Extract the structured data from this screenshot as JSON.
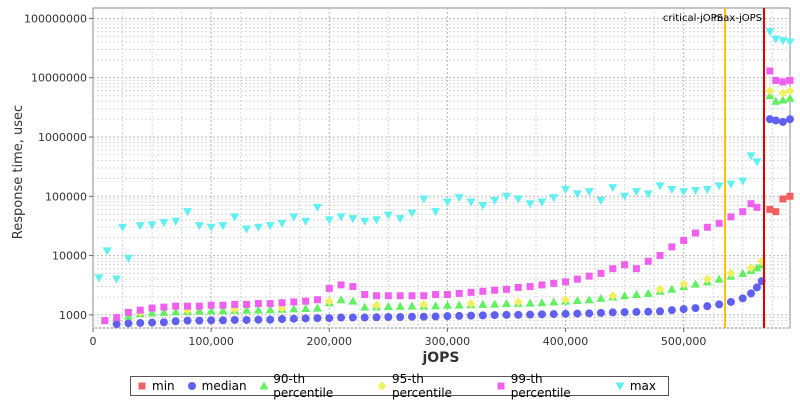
{
  "chart_data": {
    "type": "scatter",
    "xlabel": "jOPS",
    "ylabel": "Response time, usec",
    "y_scale": "log",
    "xlim": [
      0,
      590000
    ],
    "ylim": [
      600,
      150000000
    ],
    "x_ticks": [
      0,
      100000,
      200000,
      300000,
      400000,
      500000
    ],
    "x_tick_labels": [
      "0",
      "100,000",
      "200,000",
      "300,000",
      "400,000",
      "500,000"
    ],
    "y_ticks": [
      1000,
      10000,
      100000,
      1000000,
      10000000,
      100000000
    ],
    "y_tick_labels": [
      "1000",
      "10000",
      "100000",
      "1000000",
      "10000000",
      "100000000"
    ],
    "grid": true,
    "legend_position": "bottom",
    "reference_lines": [
      {
        "label": "critical-jOPS",
        "x": 535000,
        "color": "#ffc000"
      },
      {
        "label": "max-jOPS",
        "x": 568000,
        "color": "#e00000"
      }
    ],
    "series": [
      {
        "name": "min",
        "color": "#f06060",
        "marker": "square",
        "points": [
          [
            573000,
            60000
          ],
          [
            578000,
            55000
          ],
          [
            584000,
            90000
          ],
          [
            590000,
            100000
          ]
        ]
      },
      {
        "name": "median",
        "color": "#6060f0",
        "marker": "circle",
        "points": [
          [
            20000,
            700
          ],
          [
            30000,
            720
          ],
          [
            40000,
            730
          ],
          [
            50000,
            740
          ],
          [
            60000,
            750
          ],
          [
            70000,
            780
          ],
          [
            80000,
            800
          ],
          [
            90000,
            800
          ],
          [
            100000,
            810
          ],
          [
            110000,
            810
          ],
          [
            120000,
            820
          ],
          [
            130000,
            820
          ],
          [
            140000,
            830
          ],
          [
            150000,
            830
          ],
          [
            160000,
            850
          ],
          [
            170000,
            860
          ],
          [
            180000,
            870
          ],
          [
            190000,
            880
          ],
          [
            200000,
            880
          ],
          [
            210000,
            900
          ],
          [
            220000,
            900
          ],
          [
            230000,
            900
          ],
          [
            240000,
            910
          ],
          [
            250000,
            920
          ],
          [
            260000,
            920
          ],
          [
            270000,
            930
          ],
          [
            280000,
            930
          ],
          [
            290000,
            940
          ],
          [
            300000,
            950
          ],
          [
            310000,
            960
          ],
          [
            320000,
            970
          ],
          [
            330000,
            980
          ],
          [
            340000,
            990
          ],
          [
            350000,
            1000
          ],
          [
            360000,
            1000
          ],
          [
            370000,
            1010
          ],
          [
            380000,
            1020
          ],
          [
            390000,
            1030
          ],
          [
            400000,
            1040
          ],
          [
            410000,
            1050
          ],
          [
            420000,
            1060
          ],
          [
            430000,
            1080
          ],
          [
            440000,
            1100
          ],
          [
            450000,
            1110
          ],
          [
            460000,
            1120
          ],
          [
            470000,
            1130
          ],
          [
            480000,
            1150
          ],
          [
            490000,
            1200
          ],
          [
            500000,
            1250
          ],
          [
            510000,
            1300
          ],
          [
            520000,
            1400
          ],
          [
            530000,
            1500
          ],
          [
            540000,
            1650
          ],
          [
            550000,
            1900
          ],
          [
            557000,
            2300
          ],
          [
            562000,
            2900
          ],
          [
            566000,
            3700
          ],
          [
            573000,
            2000000
          ],
          [
            578000,
            1900000
          ],
          [
            584000,
            1800000
          ],
          [
            590000,
            2000000
          ]
        ]
      },
      {
        "name": "90-th percentile",
        "color": "#60f060",
        "marker": "triangle",
        "points": [
          [
            20000,
            900
          ],
          [
            30000,
            950
          ],
          [
            40000,
            1050
          ],
          [
            50000,
            1080
          ],
          [
            60000,
            1100
          ],
          [
            70000,
            1120
          ],
          [
            80000,
            1150
          ],
          [
            90000,
            1160
          ],
          [
            100000,
            1170
          ],
          [
            110000,
            1180
          ],
          [
            120000,
            1190
          ],
          [
            130000,
            1200
          ],
          [
            140000,
            1210
          ],
          [
            150000,
            1220
          ],
          [
            160000,
            1240
          ],
          [
            170000,
            1260
          ],
          [
            180000,
            1280
          ],
          [
            190000,
            1300
          ],
          [
            200000,
            1600
          ],
          [
            210000,
            1800
          ],
          [
            220000,
            1700
          ],
          [
            230000,
            1350
          ],
          [
            240000,
            1360
          ],
          [
            250000,
            1380
          ],
          [
            260000,
            1390
          ],
          [
            270000,
            1400
          ],
          [
            280000,
            1400
          ],
          [
            290000,
            1420
          ],
          [
            300000,
            1450
          ],
          [
            310000,
            1460
          ],
          [
            320000,
            1480
          ],
          [
            330000,
            1500
          ],
          [
            340000,
            1520
          ],
          [
            350000,
            1550
          ],
          [
            360000,
            1560
          ],
          [
            370000,
            1580
          ],
          [
            380000,
            1600
          ],
          [
            390000,
            1650
          ],
          [
            400000,
            1700
          ],
          [
            410000,
            1750
          ],
          [
            420000,
            1800
          ],
          [
            430000,
            1900
          ],
          [
            440000,
            2000
          ],
          [
            450000,
            2100
          ],
          [
            460000,
            2200
          ],
          [
            470000,
            2300
          ],
          [
            480000,
            2500
          ],
          [
            490000,
            2700
          ],
          [
            500000,
            3000
          ],
          [
            510000,
            3300
          ],
          [
            520000,
            3600
          ],
          [
            530000,
            4000
          ],
          [
            540000,
            4500
          ],
          [
            550000,
            5000
          ],
          [
            557000,
            5600
          ],
          [
            562000,
            6200
          ],
          [
            566000,
            7000
          ],
          [
            573000,
            5000000
          ],
          [
            578000,
            4000000
          ],
          [
            584000,
            4200000
          ],
          [
            590000,
            4500000
          ]
        ]
      },
      {
        "name": "95-th percentile",
        "color": "#f0f060",
        "marker": "diamond",
        "points": [
          [
            40000,
            1100
          ],
          [
            80000,
            1200
          ],
          [
            120000,
            1250
          ],
          [
            160000,
            1300
          ],
          [
            200000,
            1700
          ],
          [
            240000,
            1450
          ],
          [
            280000,
            1500
          ],
          [
            320000,
            1550
          ],
          [
            360000,
            1650
          ],
          [
            400000,
            1800
          ],
          [
            440000,
            2100
          ],
          [
            480000,
            2700
          ],
          [
            500000,
            3300
          ],
          [
            520000,
            4000
          ],
          [
            540000,
            5000
          ],
          [
            557000,
            6200
          ],
          [
            566000,
            8000
          ],
          [
            573000,
            6000000
          ],
          [
            584000,
            5500000
          ],
          [
            590000,
            6000000
          ]
        ]
      },
      {
        "name": "99-th percentile",
        "color": "#f060f0",
        "marker": "square",
        "points": [
          [
            10000,
            800
          ],
          [
            20000,
            900
          ],
          [
            30000,
            1100
          ],
          [
            40000,
            1200
          ],
          [
            50000,
            1300
          ],
          [
            60000,
            1350
          ],
          [
            70000,
            1400
          ],
          [
            80000,
            1400
          ],
          [
            90000,
            1400
          ],
          [
            100000,
            1450
          ],
          [
            110000,
            1450
          ],
          [
            120000,
            1500
          ],
          [
            130000,
            1500
          ],
          [
            140000,
            1550
          ],
          [
            150000,
            1550
          ],
          [
            160000,
            1600
          ],
          [
            170000,
            1650
          ],
          [
            180000,
            1700
          ],
          [
            190000,
            1800
          ],
          [
            200000,
            2800
          ],
          [
            210000,
            3200
          ],
          [
            220000,
            3000
          ],
          [
            230000,
            2200
          ],
          [
            240000,
            2100
          ],
          [
            250000,
            2100
          ],
          [
            260000,
            2100
          ],
          [
            270000,
            2100
          ],
          [
            280000,
            2100
          ],
          [
            290000,
            2200
          ],
          [
            300000,
            2200
          ],
          [
            310000,
            2300
          ],
          [
            320000,
            2400
          ],
          [
            330000,
            2500
          ],
          [
            340000,
            2600
          ],
          [
            350000,
            2700
          ],
          [
            360000,
            2900
          ],
          [
            370000,
            3000
          ],
          [
            380000,
            3200
          ],
          [
            390000,
            3400
          ],
          [
            400000,
            3600
          ],
          [
            410000,
            4000
          ],
          [
            420000,
            4500
          ],
          [
            430000,
            5000
          ],
          [
            440000,
            6000
          ],
          [
            450000,
            7000
          ],
          [
            460000,
            6000
          ],
          [
            470000,
            8000
          ],
          [
            480000,
            10000
          ],
          [
            490000,
            14000
          ],
          [
            500000,
            18000
          ],
          [
            510000,
            24000
          ],
          [
            520000,
            30000
          ],
          [
            530000,
            35000
          ],
          [
            540000,
            45000
          ],
          [
            550000,
            55000
          ],
          [
            557000,
            75000
          ],
          [
            562000,
            65000
          ],
          [
            573000,
            13000000
          ],
          [
            578000,
            9000000
          ],
          [
            584000,
            8500000
          ],
          [
            590000,
            9000000
          ]
        ]
      },
      {
        "name": "max",
        "color": "#60f0f0",
        "marker": "triangle-down",
        "points": [
          [
            5000,
            4200
          ],
          [
            12000,
            12000
          ],
          [
            20000,
            4000
          ],
          [
            25000,
            30000
          ],
          [
            30000,
            9000
          ],
          [
            40000,
            32000
          ],
          [
            50000,
            33000
          ],
          [
            60000,
            36000
          ],
          [
            70000,
            38000
          ],
          [
            80000,
            55000
          ],
          [
            90000,
            32000
          ],
          [
            100000,
            30000
          ],
          [
            110000,
            32000
          ],
          [
            120000,
            45000
          ],
          [
            130000,
            28000
          ],
          [
            140000,
            30000
          ],
          [
            150000,
            32000
          ],
          [
            160000,
            35000
          ],
          [
            170000,
            45000
          ],
          [
            180000,
            38000
          ],
          [
            190000,
            65000
          ],
          [
            200000,
            40000
          ],
          [
            210000,
            45000
          ],
          [
            220000,
            42000
          ],
          [
            230000,
            38000
          ],
          [
            240000,
            40000
          ],
          [
            250000,
            48000
          ],
          [
            260000,
            42000
          ],
          [
            270000,
            52000
          ],
          [
            280000,
            90000
          ],
          [
            290000,
            55000
          ],
          [
            300000,
            80000
          ],
          [
            310000,
            95000
          ],
          [
            320000,
            80000
          ],
          [
            330000,
            70000
          ],
          [
            340000,
            85000
          ],
          [
            350000,
            100000
          ],
          [
            360000,
            90000
          ],
          [
            370000,
            75000
          ],
          [
            380000,
            80000
          ],
          [
            390000,
            95000
          ],
          [
            400000,
            130000
          ],
          [
            410000,
            110000
          ],
          [
            420000,
            120000
          ],
          [
            430000,
            85000
          ],
          [
            440000,
            140000
          ],
          [
            450000,
            100000
          ],
          [
            460000,
            120000
          ],
          [
            470000,
            110000
          ],
          [
            480000,
            150000
          ],
          [
            490000,
            130000
          ],
          [
            500000,
            120000
          ],
          [
            510000,
            125000
          ],
          [
            520000,
            130000
          ],
          [
            530000,
            150000
          ],
          [
            540000,
            160000
          ],
          [
            550000,
            180000
          ],
          [
            557000,
            480000
          ],
          [
            562000,
            380000
          ],
          [
            573000,
            60000000
          ],
          [
            578000,
            45000000
          ],
          [
            584000,
            42000000
          ],
          [
            590000,
            40000000
          ]
        ]
      }
    ],
    "legend": [
      "min",
      "median",
      "90-th percentile",
      "95-th percentile",
      "99-th percentile",
      "max"
    ]
  }
}
